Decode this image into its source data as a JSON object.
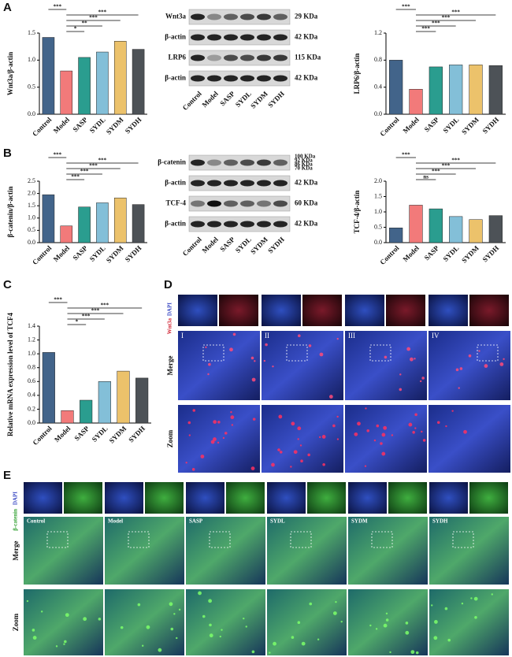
{
  "panel_labels": [
    "A",
    "B",
    "C",
    "D",
    "E"
  ],
  "chart_data": [
    {
      "type": "bar",
      "ylabel": "Wnt3a/β-actin",
      "categories": [
        "Control",
        "Model",
        "SASP",
        "SYDL",
        "SYDM",
        "SYDH"
      ],
      "values": [
        1.42,
        0.8,
        1.05,
        1.15,
        1.35,
        1.2
      ],
      "colors": [
        "#42648a",
        "#f27a7a",
        "#2a9d8f",
        "#83bfd8",
        "#ecc26b",
        "#4d5257"
      ],
      "ylim": [
        0,
        1.5
      ],
      "yticks": [
        {
          "value": 0,
          "label": "0.0"
        },
        0.5,
        {
          "value": 1,
          "label": "1.0"
        },
        1.5
      ],
      "brackets": [
        {
          "label": "***",
          "from": "Control",
          "to": "Model"
        },
        {
          "label": "*",
          "from": "Model",
          "to": "SASP"
        },
        {
          "label": "**",
          "from": "Model",
          "to": "SYDL"
        },
        {
          "label": "***",
          "from": "Model",
          "to": "SYDM"
        },
        {
          "label": "***",
          "from": "Model",
          "to": "SYDH"
        }
      ]
    },
    {
      "type": "bar",
      "ylabel": "LRP6/β-actin",
      "categories": [
        "Control",
        "Model",
        "SASP",
        "SYDL",
        "SYDM",
        "SYDH"
      ],
      "values": [
        0.8,
        0.37,
        0.7,
        0.73,
        0.73,
        0.72
      ],
      "colors": [
        "#42648a",
        "#f27a7a",
        "#2a9d8f",
        "#83bfd8",
        "#ecc26b",
        "#4d5257"
      ],
      "ylim": [
        0,
        1.2
      ],
      "yticks": [
        {
          "value": 0,
          "label": "0.0"
        },
        0.4,
        0.8,
        1.2
      ],
      "brackets": [
        {
          "label": "***",
          "from": "Control",
          "to": "Model"
        },
        {
          "label": "***",
          "from": "Model",
          "to": "SASP"
        },
        {
          "label": "***",
          "from": "Model",
          "to": "SYDL"
        },
        {
          "label": "***",
          "from": "Model",
          "to": "SYDM"
        },
        {
          "label": "***",
          "from": "Model",
          "to": "SYDH"
        }
      ]
    },
    {
      "type": "bar",
      "ylabel": "β-catenin/β-actin",
      "categories": [
        "Control",
        "Model",
        "SASP",
        "SYDL",
        "SYDM",
        "SYDH"
      ],
      "values": [
        1.95,
        0.68,
        1.45,
        1.62,
        1.82,
        1.55
      ],
      "colors": [
        "#42648a",
        "#f27a7a",
        "#2a9d8f",
        "#83bfd8",
        "#ecc26b",
        "#4d5257"
      ],
      "ylim": [
        0,
        2.5
      ],
      "yticks": [
        {
          "value": 0,
          "label": "0.0"
        },
        0.5,
        {
          "value": 1,
          "label": "1.0"
        },
        1.5,
        {
          "value": 2,
          "label": "2.0"
        },
        2.5
      ],
      "brackets": [
        {
          "label": "***",
          "from": "Control",
          "to": "Model"
        },
        {
          "label": "***",
          "from": "Model",
          "to": "SASP"
        },
        {
          "label": "***",
          "from": "Model",
          "to": "SYDL"
        },
        {
          "label": "***",
          "from": "Model",
          "to": "SYDM"
        },
        {
          "label": "***",
          "from": "Model",
          "to": "SYDH"
        }
      ]
    },
    {
      "type": "bar",
      "ylabel": "TCF-4/β-actin",
      "categories": [
        "Control",
        "Model",
        "SASP",
        "SYDL",
        "SYDM",
        "SYDH"
      ],
      "values": [
        0.48,
        1.22,
        1.1,
        0.85,
        0.75,
        0.88
      ],
      "colors": [
        "#42648a",
        "#f27a7a",
        "#2a9d8f",
        "#83bfd8",
        "#ecc26b",
        "#4d5257"
      ],
      "ylim": [
        0,
        2
      ],
      "yticks": [
        {
          "value": 0,
          "label": "0.0"
        },
        0.5,
        {
          "value": 1,
          "label": "1.0"
        },
        1.5,
        {
          "value": 2,
          "label": "2.0"
        }
      ],
      "brackets": [
        {
          "label": "***",
          "from": "Control",
          "to": "Model"
        },
        {
          "label": "ns",
          "from": "Model",
          "to": "SASP"
        },
        {
          "label": "***",
          "from": "Model",
          "to": "SYDL"
        },
        {
          "label": "***",
          "from": "Model",
          "to": "SYDM"
        },
        {
          "label": "***",
          "from": "Model",
          "to": "SYDH"
        }
      ]
    },
    {
      "type": "bar",
      "ylabel": "Relative mRNA expression level of TCF4",
      "categories": [
        "Control",
        "Model",
        "SASP",
        "SYDL",
        "SYDM",
        "SYDH"
      ],
      "values": [
        1.02,
        0.18,
        0.33,
        0.6,
        0.75,
        0.65
      ],
      "colors": [
        "#42648a",
        "#f27a7a",
        "#2a9d8f",
        "#83bfd8",
        "#ecc26b",
        "#4d5257"
      ],
      "ylim": [
        0,
        1.4
      ],
      "yticks": [
        {
          "value": 0,
          "label": "0.0"
        },
        0.2,
        0.4,
        0.6,
        0.8,
        {
          "value": 1,
          "label": "1.0"
        },
        1.2,
        1.4
      ],
      "brackets": [
        {
          "label": "***",
          "from": "Control",
          "to": "Model"
        },
        {
          "label": "*",
          "from": "Model",
          "to": "SASP"
        },
        {
          "label": "***",
          "from": "Model",
          "to": "SYDL"
        },
        {
          "label": "***",
          "from": "Model",
          "to": "SYDM"
        },
        {
          "label": "***",
          "from": "Model",
          "to": "SYDH"
        }
      ]
    }
  ],
  "blots": [
    {
      "lanes": [
        "Control",
        "Model",
        "SASP",
        "SYDL",
        "SYDM",
        "SYDH"
      ],
      "rows": [
        {
          "name": "Wnt3a",
          "size": "29 KDa"
        },
        {
          "name": "β-actin",
          "size": "42 KDa"
        },
        {
          "name": "LRP6",
          "size": "115 KDa"
        },
        {
          "name": "β-actin",
          "size": "42 KDa"
        }
      ]
    },
    {
      "lanes": [
        "Control",
        "Model",
        "SASP",
        "SYDL",
        "SYDM",
        "SYDH"
      ],
      "rows": [
        {
          "name": "β-catenin",
          "markers": [
            "100 KDa",
            "92 KDa",
            "86 KDa",
            "70 KDa"
          ]
        },
        {
          "name": "β-actin",
          "size": "42 KDa"
        },
        {
          "name": "TCF-4",
          "size": "60 KDa"
        },
        {
          "name": "β-actin",
          "size": "42 KDa"
        }
      ]
    }
  ],
  "panel_d": {
    "channels": [
      "DAPI",
      "Wnt3a"
    ],
    "groups": [
      "I",
      "II",
      "III",
      "IV"
    ],
    "rows": [
      "Merge",
      "Zoom"
    ]
  },
  "panel_e": {
    "channels": [
      "DAPI",
      "β-catenin"
    ],
    "groups": [
      "Control",
      "Model",
      "SASP",
      "SYDL",
      "SYDM",
      "SYDH"
    ],
    "rows": [
      "Merge",
      "Zoom"
    ]
  }
}
